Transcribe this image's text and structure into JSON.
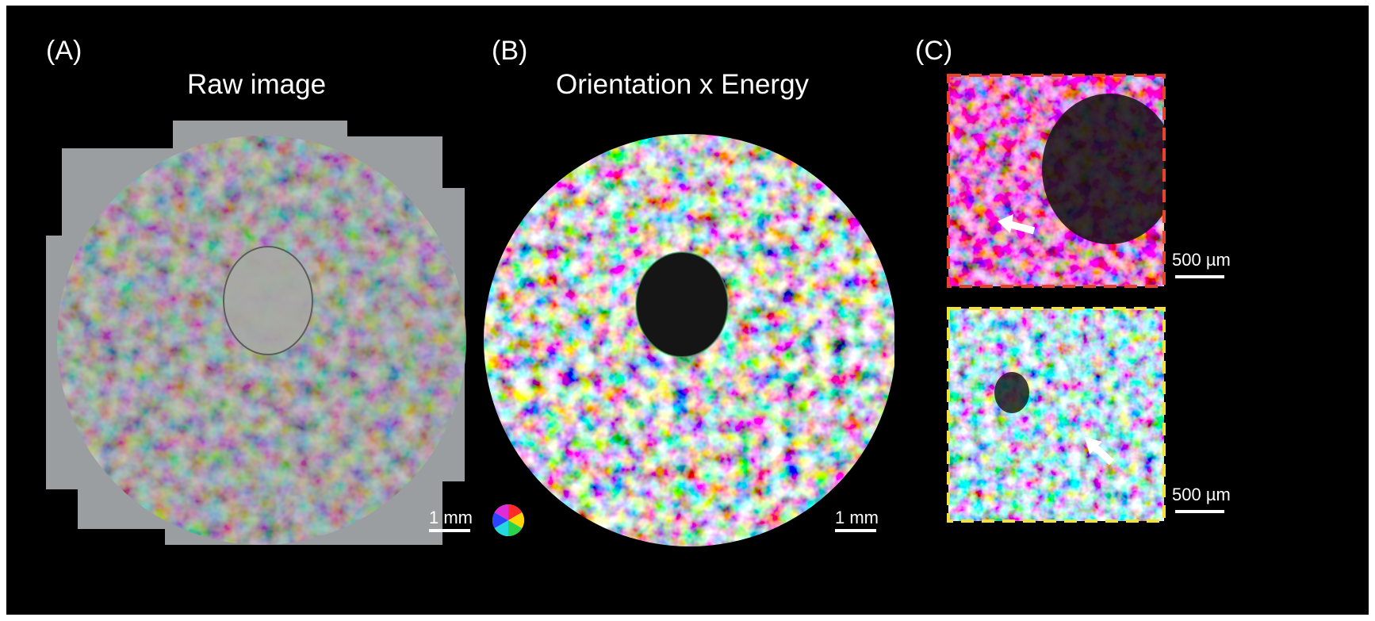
{
  "panels": {
    "a": {
      "label": "(A)",
      "title": "Raw image",
      "scale_text": "1 mm"
    },
    "b": {
      "label": "(B)",
      "title": "Orientation x Energy",
      "scale_text": "1 mm",
      "color_wheel_icon": "orientation-color-wheel"
    },
    "c": {
      "label": "(C)",
      "top_inset": {
        "scale_text": "500 µm",
        "border_color": "#e8412c"
      },
      "bottom_inset": {
        "scale_text": "500 µm",
        "border_color": "#f2e23a"
      }
    }
  },
  "colors": {
    "background": "#000000",
    "text": "#ffffff",
    "raw_frame": "#9a9ea1"
  }
}
